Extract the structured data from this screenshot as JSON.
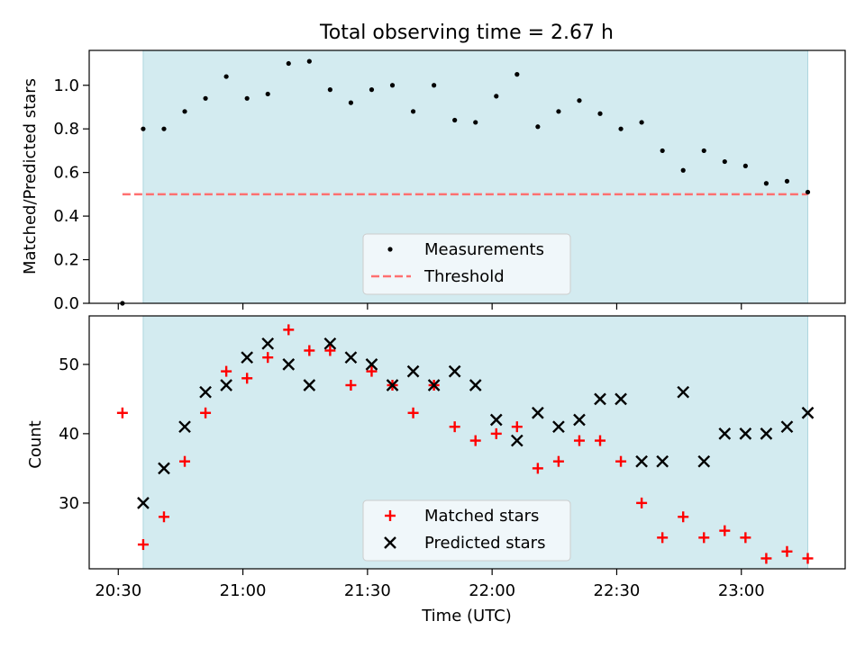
{
  "colors": {
    "shade": "#d3ebf0",
    "shade_edge": "#aed6df",
    "measure": "#000000",
    "threshold": "#ff7070",
    "matched": "#ff0000",
    "predicted": "#000000"
  },
  "x_ticks": [
    {
      "t": 0,
      "label": "20:30"
    },
    {
      "t": 30,
      "label": "21:00"
    },
    {
      "t": 60,
      "label": "21:30"
    },
    {
      "t": 90,
      "label": "22:00"
    },
    {
      "t": 120,
      "label": "22:30"
    },
    {
      "t": 150,
      "label": "23:00"
    }
  ],
  "chart_data": [
    {
      "type": "scatter",
      "title": "Total observing time = 2.67 h",
      "ylabel": "Matched/Predicted stars",
      "ylim": [
        0,
        1.16
      ],
      "xlim_time": [
        "20:23",
        "23:25"
      ],
      "y_ticks": [
        "0.0",
        "0.2",
        "0.4",
        "0.6",
        "0.8",
        "1.0"
      ],
      "shaded_span": [
        "20:36",
        "23:16"
      ],
      "legend": {
        "position": "lower-center",
        "entries": [
          {
            "key": "measurements",
            "label": "Measurements"
          },
          {
            "key": "threshold",
            "label": "Threshold"
          }
        ]
      },
      "threshold": {
        "value": 0.5,
        "x_start": "20:31",
        "x_end": "23:16"
      },
      "series": [
        {
          "name": "Measurements",
          "x": [
            "20:31",
            "20:36",
            "20:41",
            "20:46",
            "20:51",
            "20:56",
            "21:01",
            "21:06",
            "21:11",
            "21:16",
            "21:21",
            "21:26",
            "21:31",
            "21:36",
            "21:41",
            "21:46",
            "21:51",
            "21:56",
            "22:01",
            "22:06",
            "22:11",
            "22:16",
            "22:21",
            "22:26",
            "22:31",
            "22:36",
            "22:41",
            "22:46",
            "22:51",
            "22:56",
            "23:01",
            "23:06",
            "23:11",
            "23:16"
          ],
          "y": [
            0.0,
            0.8,
            0.8,
            0.88,
            0.94,
            1.04,
            0.94,
            0.96,
            1.1,
            1.11,
            0.98,
            0.92,
            0.98,
            1.0,
            0.88,
            1.0,
            0.84,
            0.83,
            0.95,
            1.05,
            0.81,
            0.88,
            0.93,
            0.87,
            0.8,
            0.83,
            0.7,
            0.61,
            0.7,
            0.65,
            0.63,
            0.55,
            0.56,
            0.51
          ]
        }
      ]
    },
    {
      "type": "scatter",
      "xlabel": "Time (UTC)",
      "ylabel": "Count",
      "ylim": [
        20.5,
        57
      ],
      "y_ticks": [
        "30",
        "40",
        "50"
      ],
      "shaded_span": [
        "20:36",
        "23:16"
      ],
      "legend": {
        "position": "lower-center",
        "entries": [
          {
            "key": "matched",
            "label": "Matched stars"
          },
          {
            "key": "predicted",
            "label": "Predicted stars"
          }
        ]
      },
      "series": [
        {
          "name": "Matched stars",
          "marker": "plus",
          "x": [
            "20:31",
            "20:36",
            "20:41",
            "20:46",
            "20:51",
            "20:56",
            "21:01",
            "21:06",
            "21:11",
            "21:16",
            "21:21",
            "21:26",
            "21:31",
            "21:36",
            "21:41",
            "21:46",
            "21:51",
            "21:56",
            "22:01",
            "22:06",
            "22:11",
            "22:16",
            "22:21",
            "22:26",
            "22:31",
            "22:36",
            "22:41",
            "22:46",
            "22:51",
            "22:56",
            "23:01",
            "23:06",
            "23:11",
            "23:16"
          ],
          "y": [
            43,
            24,
            28,
            36,
            43,
            49,
            48,
            51,
            55,
            52,
            52,
            47,
            49,
            47,
            43,
            47,
            41,
            39,
            40,
            41,
            35,
            36,
            39,
            39,
            36,
            30,
            25,
            28,
            25,
            26,
            25,
            22,
            23,
            22
          ]
        },
        {
          "name": "Predicted stars",
          "marker": "x",
          "x": [
            "20:36",
            "20:41",
            "20:46",
            "20:51",
            "20:56",
            "21:01",
            "21:06",
            "21:11",
            "21:16",
            "21:21",
            "21:26",
            "21:31",
            "21:36",
            "21:41",
            "21:46",
            "21:51",
            "21:56",
            "22:01",
            "22:06",
            "22:11",
            "22:16",
            "22:21",
            "22:26",
            "22:31",
            "22:36",
            "22:41",
            "22:46",
            "22:51",
            "22:56",
            "23:01",
            "23:06",
            "23:11",
            "23:16"
          ],
          "y": [
            30,
            35,
            41,
            46,
            47,
            51,
            53,
            50,
            47,
            53,
            51,
            50,
            47,
            49,
            47,
            49,
            47,
            42,
            39,
            43,
            41,
            42,
            45,
            45,
            36,
            36,
            46,
            36,
            40,
            40,
            40,
            41,
            43
          ]
        }
      ]
    }
  ]
}
